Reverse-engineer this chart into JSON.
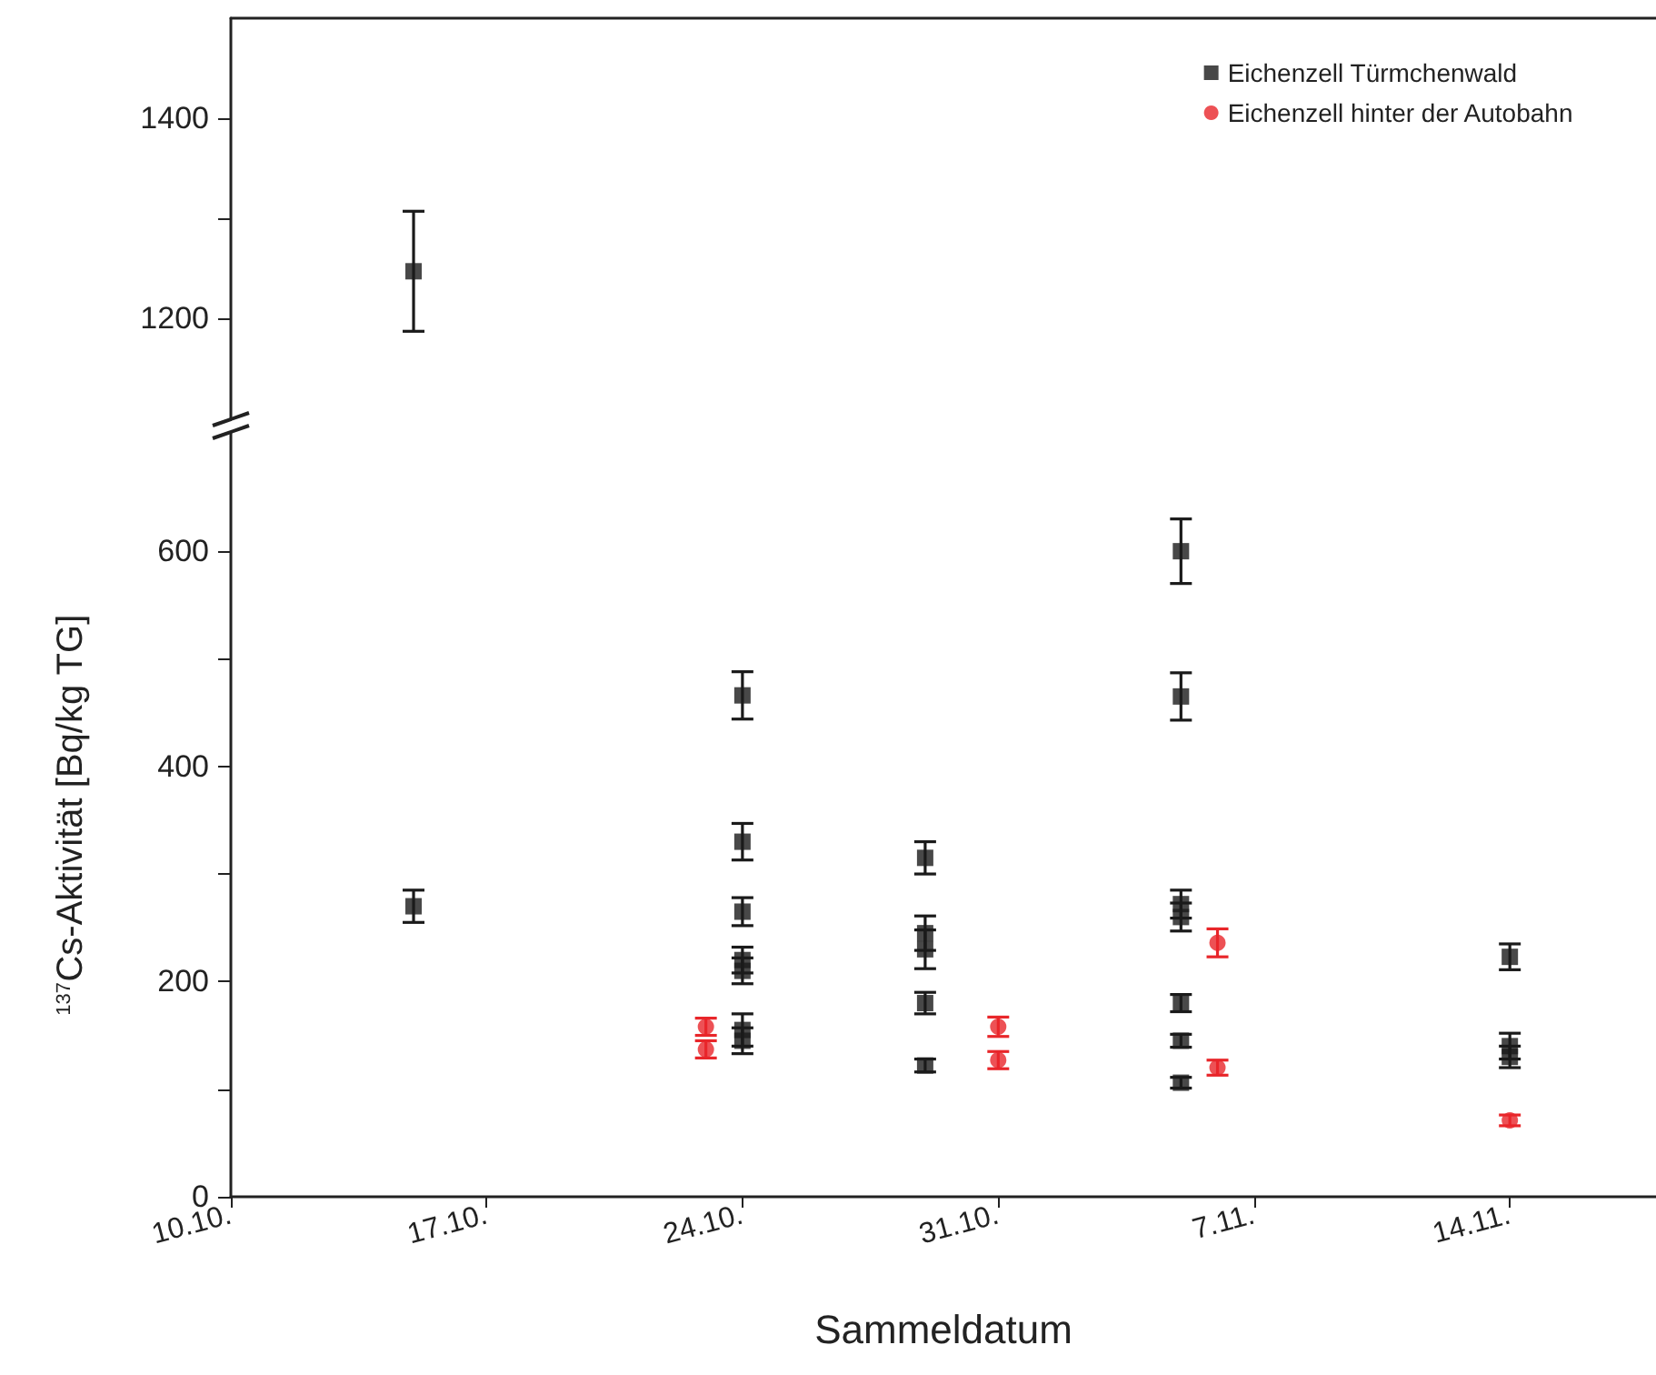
{
  "chart_data": [
    {
      "type": "scatter",
      "xlim": [
        "--10-10",
        "--11-18"
      ],
      "ylim": [
        1100,
        1500
      ],
      "yticks": [
        1200,
        {
          "value": 1300,
          "label": null
        },
        1400
      ],
      "tick_labels": "y",
      "grid": false,
      "series": [
        {
          "color": "#1a1a1a",
          "marker": "square",
          "x": [
            "--10-15"
          ],
          "values": [
            1247
          ],
          "errors": [
            60
          ]
        }
      ]
    },
    {
      "type": "scatter",
      "xlabel": "Sammeldatum",
      "ylabel": "$^{137}$Cs-Aktivität [Bq/kg TG]",
      "xlim": [
        "--10-10",
        "--11-18"
      ],
      "xticks": [
        {
          "value": "--10-10",
          "label": "10.10."
        },
        {
          "value": "--10-17",
          "label": "17.10."
        },
        {
          "value": "--10-24",
          "label": "24.10."
        },
        {
          "value": "--10-31",
          "label": "31.10."
        },
        {
          "value": "--11-07",
          "label": "7.11."
        },
        {
          "value": "--11-14",
          "label": "14.11."
        }
      ],
      "ylim": [
        0,
        710
      ],
      "yticks": [
        0,
        {
          "value": 100,
          "label": null
        },
        200,
        {
          "value": 300,
          "label": null
        },
        400,
        {
          "value": 500,
          "label": null
        },
        600
      ],
      "grid": false,
      "legend": "top right",
      "series": [
        {
          "name": "Eichenzell Türmchenwald",
          "color": "#1a1a1a",
          "marker": "square",
          "x": [
            "--10-15",
            "--10-24",
            "--10-24",
            "--10-24",
            "--10-24",
            "--10-24",
            "--10-24",
            "--10-24",
            "--10-29",
            "--10-29",
            "--10-29",
            "--10-29",
            "--10-29",
            "--11-05",
            "--11-05",
            "--11-05",
            "--11-05",
            "--11-05",
            "--11-05",
            "--11-05",
            "--11-14",
            "--11-14",
            "--11-14"
          ],
          "values": [
            270,
            466,
            330,
            265,
            220,
            210,
            155,
            145,
            315,
            245,
            230,
            180,
            122,
            600,
            465,
            272,
            260,
            180,
            145,
            106,
            223,
            140,
            130
          ],
          "errors": [
            15,
            22,
            17,
            13,
            12,
            12,
            15,
            12,
            15,
            16,
            18,
            10,
            6,
            30,
            22,
            13,
            13,
            8,
            6,
            5,
            12,
            12,
            10
          ]
        },
        {
          "name": "Eichenzell hinter der Autobahn",
          "color": "#e8262a",
          "marker": "circle",
          "x": [
            "--10-23",
            "--10-23",
            "--10-31",
            "--10-31",
            "--11-06",
            "--11-06",
            "--11-14"
          ],
          "values": [
            158,
            137,
            158,
            127,
            236,
            120,
            71
          ],
          "errors": [
            8,
            8,
            9,
            8,
            13,
            7,
            5
          ]
        }
      ]
    }
  ]
}
